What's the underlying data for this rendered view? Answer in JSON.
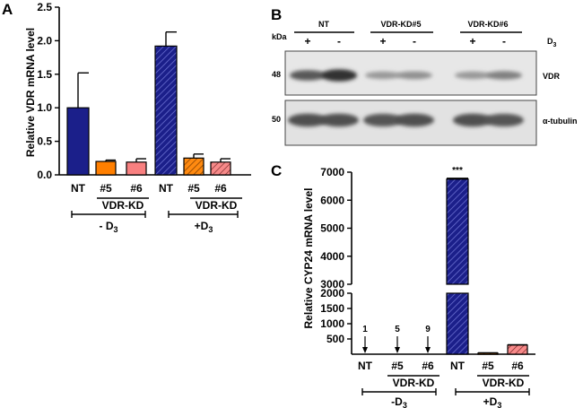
{
  "figure": {
    "panels": [
      "A",
      "B",
      "C"
    ],
    "groups_a": [
      {
        "sublabel": "VDR-KD",
        "treatment_main": "- D",
        "treatment_sub": "3"
      },
      {
        "sublabel": "VDR-KD",
        "treatment_main": "+D",
        "treatment_sub": "3"
      }
    ],
    "groups_c": [
      {
        "sublabel": "VDR-KD",
        "treatment_main": "-D",
        "treatment_sub": "3"
      },
      {
        "sublabel": "VDR-KD",
        "treatment_main": "+D",
        "treatment_sub": "3"
      }
    ],
    "blot": {
      "kda_label": "kDa",
      "lane_groups": [
        "NT",
        "VDR-KD#5",
        "VDR-KD#6"
      ],
      "lanes_sign": [
        "+",
        "-",
        "+",
        "-",
        "+",
        "-"
      ],
      "d3_main": "D",
      "d3_sub": "3",
      "band1_marker": "48",
      "band1_name": "VDR",
      "band2_marker": "50",
      "band2_name": "α-tubulin",
      "vdr_intensity": [
        0.7,
        0.95,
        0.3,
        0.35,
        0.3,
        0.45
      ],
      "tub_intensity": [
        0.75,
        0.75,
        0.72,
        0.75,
        0.75,
        0.72
      ]
    }
  },
  "chart_data": [
    {
      "panel": "A",
      "type": "bar",
      "title": "",
      "ylabel": "Relative VDR mRNA level",
      "ylim": [
        0,
        2.5
      ],
      "yticks": [
        "0.0",
        "0.5",
        "1.0",
        "1.5",
        "2.0",
        "2.5"
      ],
      "categories": [
        "NT",
        "#5",
        "#6",
        "NT",
        "#5",
        "#6"
      ],
      "values": [
        1.0,
        0.2,
        0.19,
        1.92,
        0.25,
        0.19
      ],
      "errors": [
        0.52,
        0.02,
        0.05,
        0.21,
        0.06,
        0.05
      ],
      "colors": [
        "#1b1f8a",
        "#ff7f00",
        "#f88080",
        "#1b1f8a",
        "#ff7f00",
        "#f88080"
      ],
      "hatched": [
        false,
        false,
        false,
        true,
        true,
        true
      ]
    },
    {
      "panel": "C",
      "type": "bar",
      "title": "",
      "ylabel": "Relative CYP24 mRNA level",
      "broken_axis": true,
      "ylim_lower": [
        0,
        2000
      ],
      "ylim_upper": [
        3000,
        7000
      ],
      "yticks_lower": [
        "500",
        "1000",
        "1500",
        "2000"
      ],
      "yticks_upper": [
        "3000",
        "4000",
        "5000",
        "6000",
        "7000"
      ],
      "categories": [
        "NT",
        "#5",
        "#6",
        "NT",
        "#5",
        "#6"
      ],
      "values": [
        1,
        5,
        9,
        6750,
        40,
        300
      ],
      "errors": [
        0,
        0,
        0,
        30,
        5,
        12
      ],
      "colors": [
        "#1b1f8a",
        "#ff7f00",
        "#f88080",
        "#1b1f8a",
        "#ff7f00",
        "#f88080"
      ],
      "hatched": [
        false,
        false,
        false,
        true,
        true,
        true
      ],
      "annotations": [
        "1",
        "5",
        "9",
        "***"
      ]
    }
  ]
}
